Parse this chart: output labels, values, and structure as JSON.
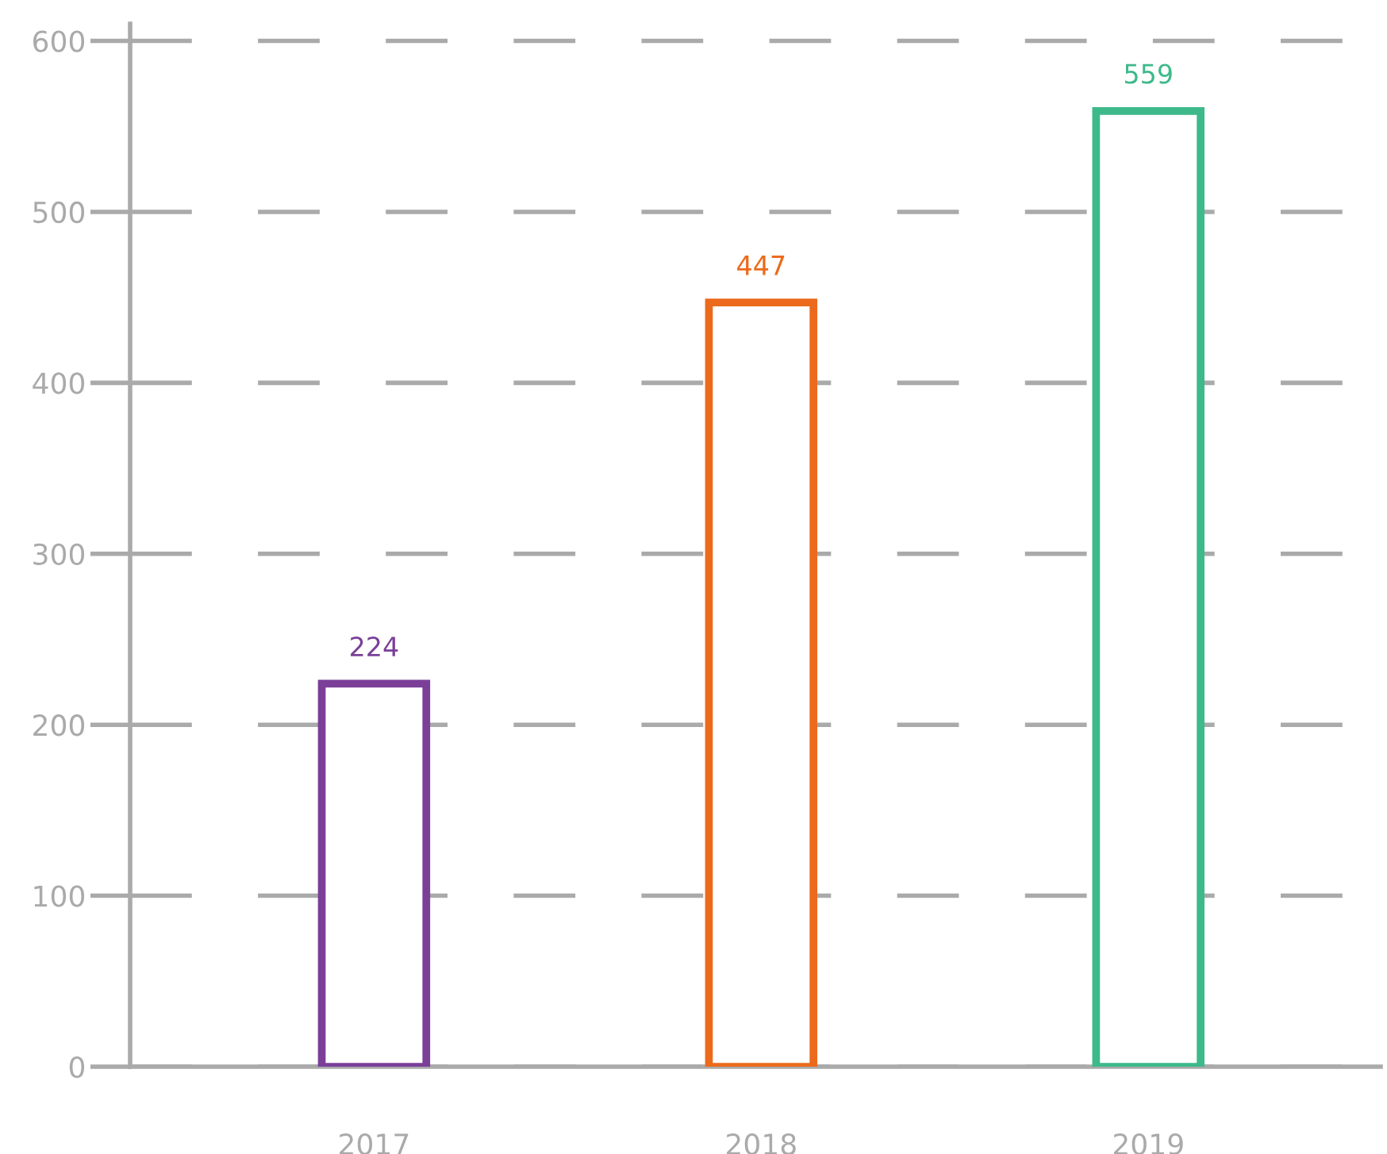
{
  "chart_data": {
    "type": "bar",
    "categories": [
      "2017",
      "2018",
      "2019"
    ],
    "values": [
      224,
      447,
      559
    ],
    "colors": [
      "#7b3f98",
      "#ec6a1c",
      "#3db98a"
    ],
    "ylim": [
      0,
      610
    ],
    "yticks": [
      0,
      100,
      200,
      300,
      400,
      500,
      600
    ],
    "grid": "y",
    "data_labels": true
  }
}
